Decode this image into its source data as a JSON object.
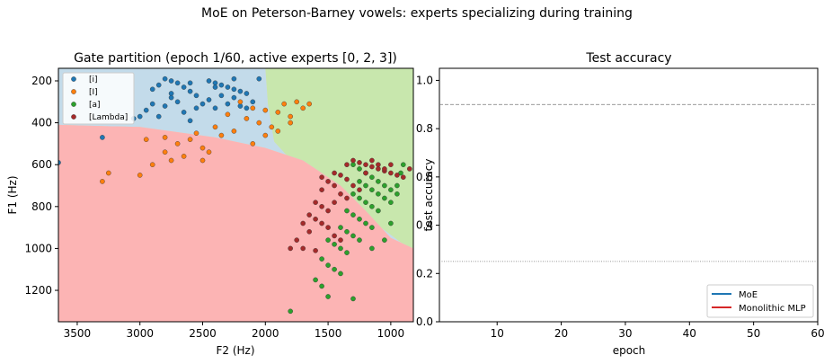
{
  "suptitle": "MoE on Peterson-Barney vowels: experts specializing during training",
  "chart_data": [
    {
      "type": "scatter",
      "title": "Gate partition  (epoch 1/60, active experts [0, 2, 3])",
      "xlabel": "F2 (Hz)",
      "ylabel": "F1 (Hz)",
      "xlim": [
        3650,
        820
      ],
      "ylim": [
        1350,
        140
      ],
      "xticks": [
        3500,
        3000,
        2500,
        2000,
        1500,
        1000
      ],
      "yticks": [
        200,
        400,
        600,
        800,
        1000,
        1200
      ],
      "regions": {
        "colors": {
          "e0": "#c3dbea",
          "e2": "#c8e7ad",
          "e3": "#fcb4b4",
          "e1": "#fdd3a4"
        },
        "blue_green_boundary": [
          [
            2000,
            140
          ],
          [
            1980,
            310
          ],
          [
            1930,
            490
          ],
          [
            1700,
            640
          ],
          [
            1400,
            750
          ],
          [
            1100,
            890
          ],
          [
            900,
            980
          ],
          [
            820,
            1010
          ]
        ],
        "red_top_boundary": [
          [
            3650,
            410
          ],
          [
            3000,
            420
          ],
          [
            2400,
            470
          ],
          [
            2000,
            520
          ],
          [
            1700,
            580
          ],
          [
            1400,
            700
          ],
          [
            1200,
            820
          ],
          [
            1000,
            950
          ],
          [
            820,
            1000
          ]
        ]
      },
      "legend": {
        "position": "upper-left",
        "entries": [
          "[i]",
          "[I]",
          "[a]",
          "[Lambda]"
        ]
      },
      "series": [
        {
          "name": "[i]",
          "color": "#1f77b4",
          "points": [
            [
              2800,
              190
            ],
            [
              2750,
              200
            ],
            [
              2700,
              210
            ],
            [
              2850,
              220
            ],
            [
              2650,
              230
            ],
            [
              2900,
              240
            ],
            [
              2600,
              250
            ],
            [
              2750,
              260
            ],
            [
              2550,
              270
            ],
            [
              2450,
              200
            ],
            [
              2400,
              210
            ],
            [
              2350,
              220
            ],
            [
              2300,
              230
            ],
            [
              2250,
              240
            ],
            [
              2200,
              250
            ],
            [
              2150,
              260
            ],
            [
              2350,
              270
            ],
            [
              2250,
              280
            ],
            [
              2450,
              290
            ],
            [
              2100,
              300
            ],
            [
              2300,
              310
            ],
            [
              2200,
              320
            ],
            [
              2400,
              330
            ],
            [
              2700,
              300
            ],
            [
              2800,
              320
            ],
            [
              2950,
              340
            ],
            [
              2650,
              350
            ],
            [
              2850,
              370
            ],
            [
              2600,
              390
            ],
            [
              2500,
              310
            ],
            [
              2550,
              330
            ],
            [
              2150,
              330
            ],
            [
              2050,
              190
            ],
            [
              2250,
              190
            ],
            [
              2750,
              280
            ],
            [
              2900,
              310
            ],
            [
              3000,
              370
            ],
            [
              3300,
              470
            ],
            [
              3650,
              590
            ],
            [
              3050,
              380
            ],
            [
              2400,
              230
            ],
            [
              2600,
              210
            ]
          ]
        },
        {
          "name": "[I]",
          "color": "#ff7f0e",
          "points": [
            [
              2200,
              300
            ],
            [
              2100,
              330
            ],
            [
              2000,
              340
            ],
            [
              1900,
              350
            ],
            [
              1800,
              370
            ],
            [
              2300,
              360
            ],
            [
              2150,
              380
            ],
            [
              2050,
              400
            ],
            [
              1950,
              420
            ],
            [
              1850,
              310
            ],
            [
              1700,
              330
            ],
            [
              1800,
              400
            ],
            [
              2250,
              440
            ],
            [
              2400,
              420
            ],
            [
              2550,
              450
            ],
            [
              2600,
              480
            ],
            [
              2700,
              500
            ],
            [
              2800,
              540
            ],
            [
              2900,
              600
            ],
            [
              2650,
              560
            ],
            [
              2500,
              520
            ],
            [
              2450,
              540
            ],
            [
              2750,
              580
            ],
            [
              3000,
              650
            ],
            [
              3250,
              640
            ],
            [
              3300,
              680
            ],
            [
              2800,
              470
            ],
            [
              2950,
              480
            ],
            [
              2350,
              460
            ],
            [
              1900,
              440
            ],
            [
              2000,
              460
            ],
            [
              2100,
              500
            ],
            [
              1750,
              300
            ],
            [
              1650,
              310
            ],
            [
              2500,
              580
            ]
          ]
        },
        {
          "name": "[a]",
          "color": "#2ca02c",
          "points": [
            [
              1300,
              600
            ],
            [
              1250,
              620
            ],
            [
              1200,
              640
            ],
            [
              1150,
              660
            ],
            [
              1100,
              680
            ],
            [
              1050,
              700
            ],
            [
              1000,
              720
            ],
            [
              950,
              740
            ],
            [
              1250,
              680
            ],
            [
              1200,
              700
            ],
            [
              1150,
              720
            ],
            [
              1100,
              740
            ],
            [
              1050,
              760
            ],
            [
              1000,
              780
            ],
            [
              1300,
              740
            ],
            [
              1250,
              760
            ],
            [
              1200,
              780
            ],
            [
              1150,
              800
            ],
            [
              1100,
              820
            ],
            [
              1350,
              820
            ],
            [
              1300,
              840
            ],
            [
              1250,
              860
            ],
            [
              1200,
              880
            ],
            [
              1150,
              900
            ],
            [
              1400,
              900
            ],
            [
              1350,
              920
            ],
            [
              1300,
              940
            ],
            [
              1250,
              960
            ],
            [
              1500,
              960
            ],
            [
              1450,
              980
            ],
            [
              1400,
              1000
            ],
            [
              1350,
              1020
            ],
            [
              1550,
              1050
            ],
            [
              1500,
              1080
            ],
            [
              1450,
              1100
            ],
            [
              1400,
              1120
            ],
            [
              1600,
              1150
            ],
            [
              1550,
              1180
            ],
            [
              1500,
              1230
            ],
            [
              1300,
              1240
            ],
            [
              1800,
              1300
            ],
            [
              1150,
              1000
            ],
            [
              1050,
              960
            ],
            [
              1000,
              880
            ],
            [
              950,
              700
            ],
            [
              920,
              640
            ],
            [
              900,
              600
            ]
          ]
        },
        {
          "name": "[Lambda]",
          "color": "#a52a2a",
          "points": [
            [
              1300,
              580
            ],
            [
              1250,
              590
            ],
            [
              1200,
              600
            ],
            [
              1150,
              610
            ],
            [
              1100,
              620
            ],
            [
              1050,
              630
            ],
            [
              1000,
              640
            ],
            [
              950,
              650
            ],
            [
              900,
              660
            ],
            [
              850,
              620
            ],
            [
              1400,
              650
            ],
            [
              1350,
              670
            ],
            [
              1500,
              680
            ],
            [
              1450,
              700
            ],
            [
              1550,
              720
            ],
            [
              1400,
              740
            ],
            [
              1350,
              760
            ],
            [
              1450,
              780
            ],
            [
              1600,
              780
            ],
            [
              1550,
              800
            ],
            [
              1500,
              820
            ],
            [
              1650,
              840
            ],
            [
              1600,
              860
            ],
            [
              1700,
              880
            ],
            [
              1550,
              880
            ],
            [
              1500,
              900
            ],
            [
              1650,
              920
            ],
            [
              1450,
              940
            ],
            [
              1400,
              960
            ],
            [
              1750,
              960
            ],
            [
              1800,
              1000
            ],
            [
              1700,
              1000
            ],
            [
              1600,
              1010
            ],
            [
              1300,
              700
            ],
            [
              1250,
              720
            ],
            [
              1200,
              640
            ],
            [
              1150,
              580
            ],
            [
              1100,
              600
            ],
            [
              1050,
              620
            ],
            [
              1000,
              600
            ],
            [
              1350,
              600
            ],
            [
              1450,
              640
            ],
            [
              1550,
              660
            ]
          ]
        }
      ]
    },
    {
      "type": "line",
      "title": "Test accuracy",
      "xlabel": "epoch",
      "ylabel": "test accuracy",
      "xlim": [
        1,
        60
      ],
      "ylim": [
        0.0,
        1.05
      ],
      "xticks": [
        10,
        20,
        30,
        40,
        50,
        60
      ],
      "yticks": [
        0.0,
        0.2,
        0.4,
        0.6,
        0.8,
        1.0
      ],
      "hlines": [
        {
          "y": 0.9,
          "style": "dashed"
        },
        {
          "y": 0.25,
          "style": "dotted"
        }
      ],
      "legend": {
        "position": "lower-right",
        "entries": [
          {
            "name": "MoE",
            "color": "#1f77b4"
          },
          {
            "name": "Monolithic MLP",
            "color": "#d62728"
          }
        ]
      },
      "series": [
        {
          "name": "MoE",
          "values": []
        },
        {
          "name": "Monolithic MLP",
          "values": []
        }
      ]
    }
  ]
}
